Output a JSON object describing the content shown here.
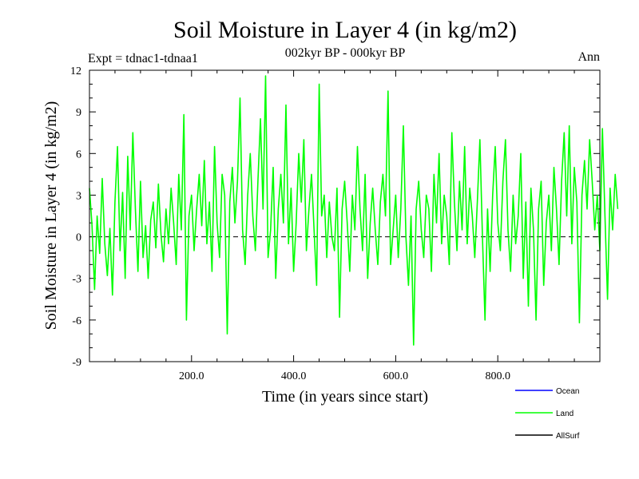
{
  "chart_data": {
    "type": "line",
    "title": "Soil Moisture in Layer 4 (in kg/m2)",
    "subtitle": "002kyr BP - 000kyr BP",
    "experiment_label": "Expt = tdnac1-tdnaa1",
    "season_label": "Ann",
    "xlabel": "Time (in years since start)",
    "ylabel": "Soil Moisture in Layer 4 (in kg/m2)",
    "xlim": [
      0,
      1000
    ],
    "ylim": [
      -9,
      12
    ],
    "x_ticks": [
      200,
      400,
      600,
      800
    ],
    "x_tick_labels": [
      "200.0",
      "400.0",
      "600.0",
      "800.0"
    ],
    "y_ticks": [
      -9,
      -6,
      -3,
      0,
      3,
      6,
      9,
      12
    ],
    "y_tick_labels": [
      "-9",
      "-6",
      "-3",
      "0",
      "3",
      "6",
      "9",
      "12"
    ],
    "zero_line": "dashed",
    "series": [
      {
        "name": "Land",
        "color": "#00ff00",
        "x_step": 5,
        "x_start": 0,
        "values": [
          3.5,
          0.8,
          -3.8,
          1.5,
          -1.2,
          4.2,
          -0.5,
          -2.8,
          0.6,
          -4.2,
          2.5,
          6.5,
          -1.0,
          3.2,
          -3.0,
          5.8,
          0.5,
          7.5,
          2.0,
          -2.5,
          4.0,
          -1.5,
          0.8,
          -3.0,
          1.2,
          2.5,
          -0.8,
          3.8,
          0.2,
          -1.8,
          2.0,
          -0.5,
          3.5,
          1.0,
          -2.0,
          4.5,
          0.5,
          8.8,
          -6.0,
          1.5,
          3.0,
          -1.0,
          2.0,
          4.5,
          0.8,
          5.5,
          -0.5,
          2.5,
          -2.5,
          6.5,
          1.0,
          -1.5,
          4.5,
          3.0,
          -7.0,
          2.5,
          5.0,
          1.0,
          4.0,
          10.0,
          0.5,
          -2.0,
          3.0,
          6.0,
          1.5,
          -1.0,
          4.0,
          8.5,
          2.0,
          11.6,
          -1.5,
          0.5,
          5.0,
          -3.0,
          2.0,
          4.5,
          1.0,
          9.5,
          -0.5,
          3.5,
          -2.5,
          1.0,
          6.0,
          2.5,
          7.0,
          -1.0,
          2.0,
          4.5,
          0.5,
          -3.5,
          11.0,
          1.5,
          3.0,
          -1.5,
          2.5,
          0.0,
          -1.0,
          3.5,
          -5.8,
          2.0,
          4.0,
          1.0,
          -2.5,
          3.0,
          0.5,
          6.5,
          2.0,
          -1.0,
          4.5,
          -3.0,
          1.0,
          3.5,
          0.5,
          -2.0,
          2.5,
          4.5,
          1.5,
          10.5,
          -2.0,
          0.5,
          3.0,
          -1.5,
          2.0,
          8.0,
          0.0,
          -3.5,
          1.5,
          -7.8,
          2.0,
          4.0,
          0.5,
          -1.5,
          3.0,
          2.0,
          -2.5,
          4.5,
          1.0,
          6.0,
          -0.5,
          3.0,
          1.5,
          -2.0,
          7.5,
          2.5,
          -1.0,
          4.0,
          0.5,
          6.5,
          -0.5,
          3.5,
          1.5,
          -1.5,
          2.5,
          7.0,
          0.0,
          -6.0,
          2.0,
          -2.5,
          3.0,
          6.5,
          1.0,
          -1.0,
          4.0,
          7.0,
          0.5,
          -2.5,
          3.0,
          -0.5,
          1.5,
          6.0,
          -3.0,
          2.5,
          -5.0,
          3.5,
          0.5,
          -6.0,
          2.0,
          4.0,
          -3.5,
          1.0,
          3.0,
          -1.0,
          5.0,
          2.0,
          -2.0,
          4.0,
          7.5,
          1.5,
          8.0,
          -0.5,
          5.0,
          2.5,
          -6.2,
          3.0,
          5.5,
          2.0,
          7.0,
          4.0,
          0.5,
          3.0,
          -1.0,
          7.8,
          1.5,
          -4.5,
          3.5,
          0.5,
          4.5,
          2.0
        ]
      },
      {
        "name": "Ocean",
        "color": "#0000ff",
        "values": []
      },
      {
        "name": "AllSurf",
        "color": "#000000",
        "values": []
      }
    ],
    "legend": {
      "placement": "bottom-right",
      "entries": [
        {
          "label": "Ocean",
          "color": "#0000ff"
        },
        {
          "label": "Land",
          "color": "#00ff00"
        },
        {
          "label": "AllSurf",
          "color": "#000000"
        }
      ]
    }
  }
}
